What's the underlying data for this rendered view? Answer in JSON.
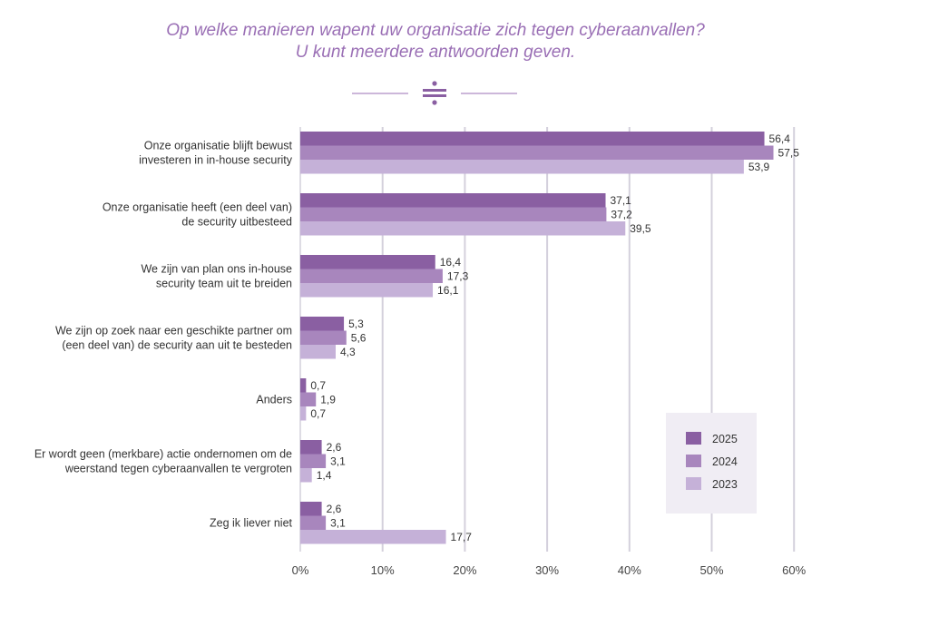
{
  "title_line1": "Op welke manieren wapent uw organisatie zich tegen cyberaanvallen?",
  "title_line2": "U kunt meerdere antwoorden geven.",
  "divider_icon": "divide-icon",
  "colors": {
    "title": "#9a6fb5",
    "series_2025": "#8a5fa2",
    "series_2024": "#a886bd",
    "series_2023": "#c5b1d8",
    "grid": "#d4d0dc",
    "legend_bg": "#f0edf4"
  },
  "chart_data": {
    "type": "bar",
    "orientation": "horizontal",
    "categories": [
      [
        "Onze organisatie blijft bewust",
        "investeren in in-house security"
      ],
      [
        "Onze organisatie heeft (een deel van)",
        "de security uitbesteed"
      ],
      [
        "We zijn van plan ons in-house",
        "security team uit te breiden"
      ],
      [
        "We zijn op zoek naar een geschikte partner om",
        "(een deel van) de security aan uit te besteden"
      ],
      [
        "Anders"
      ],
      [
        "Er wordt geen (merkbare) actie ondernomen om de",
        "weerstand tegen cyberaanvallen te vergroten"
      ],
      [
        "Zeg ik liever niet"
      ]
    ],
    "series": [
      {
        "name": "2025",
        "values": [
          56.4,
          37.1,
          16.4,
          5.3,
          0.7,
          2.6,
          2.6
        ],
        "labels": [
          "56,4",
          "37,1",
          "16,4",
          "5,3",
          "0,7",
          "2,6",
          "2,6"
        ]
      },
      {
        "name": "2024",
        "values": [
          57.5,
          37.2,
          17.3,
          5.6,
          1.9,
          3.1,
          3.1
        ],
        "labels": [
          "57,5",
          "37,2",
          "17,3",
          "5,6",
          "1,9",
          "3,1",
          "3,1"
        ]
      },
      {
        "name": "2023",
        "values": [
          53.9,
          39.5,
          16.1,
          4.3,
          0.7,
          1.4,
          17.7
        ],
        "labels": [
          "53,9",
          "39,5",
          "16,1",
          "4,3",
          "0,7",
          "1,4",
          "17,7"
        ]
      }
    ],
    "xlim": [
      0,
      60
    ],
    "xticks": [
      "0%",
      "10%",
      "20%",
      "30%",
      "40%",
      "50%",
      "60%"
    ],
    "legend": [
      "2025",
      "2024",
      "2023"
    ],
    "legend_position": "bottom-right",
    "grid": true
  }
}
